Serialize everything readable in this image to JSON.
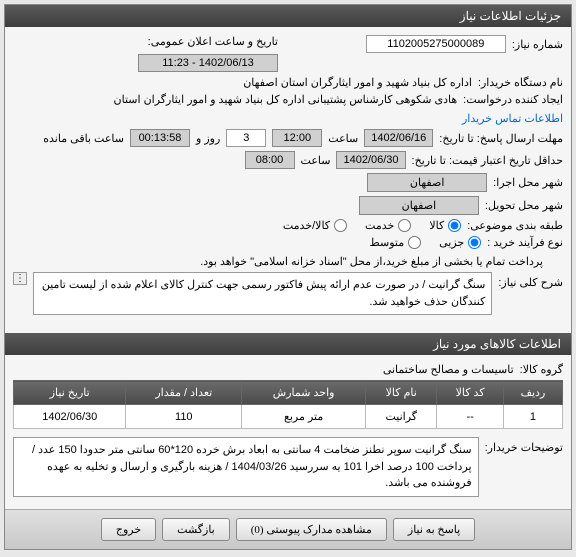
{
  "header_title": "جزئیات اطلاعات نیاز",
  "need_number_label": "شماره نیاز:",
  "need_number": "1102005275000089",
  "date_label": "تاریخ و ساعت اعلان عمومی:",
  "date_value": "1402/06/13 - 11:23",
  "buyer_label": "نام دستگاه خریدار:",
  "buyer_value": "اداره کل بنیاد شهید و امور ایثارگران استان اصفهان",
  "requester_label": "ایجاد کننده درخواست:",
  "requester_value": "هادی شکوهی کارشناس پشتیبانی اداره کل بنیاد شهید و امور ایثارگران استان",
  "contact_link": "اطلاعات تماس خریدار",
  "deadline_label": "مهلت ارسال پاسخ: تا تاریخ:",
  "deadline_date": "1402/06/16",
  "deadline_time_label": "ساعت",
  "deadline_time": "12:00",
  "days_val": "3",
  "days_label": "روز و",
  "remain_time": "00:13:58",
  "remain_label": "ساعت باقی مانده",
  "validity_label": "حداقل تاریخ اعتبار قیمت: تا تاریخ:",
  "validity_date": "1402/06/30",
  "validity_time": "08:00",
  "exec_city_label": "شهر محل اجرا:",
  "exec_city": "اصفهان",
  "deliver_city_label": "شهر محل تحویل:",
  "deliver_city": "اصفهان",
  "class_label": "طبقه بندی موضوعی:",
  "class_options": {
    "goods": "کالا",
    "service": "خدمت",
    "both": "کالا/خدمت"
  },
  "purchase_type_label": "نوع فرآیند خرید :",
  "purchase_options": {
    "partial": "جزیی",
    "medium": "متوسط"
  },
  "payment_note": "پرداخت تمام یا بخشی از مبلغ خرید،از محل \"اسناد خزانه اسلامی\" خواهد بود.",
  "desc_label": "شرح کلی نیاز:",
  "desc_text": "سنگ گرانیت / در صورت عدم ارائه پیش فاکتور رسمی جهت کنترل کالای اعلام شده از لیست تامین کنندگان حذف خواهید شد.",
  "goods_section_title": "اطلاعات کالاهای مورد نیاز",
  "group_label": "گروه کالا:",
  "group_value": "تاسیسات و مصالح ساختمانی",
  "table": {
    "columns": [
      "ردیف",
      "کد کالا",
      "نام کالا",
      "واحد شمارش",
      "تعداد / مقدار",
      "تاریخ نیاز"
    ],
    "rows": [
      [
        "1",
        "--",
        "گرانیت",
        "متر مربع",
        "110",
        "1402/06/30"
      ]
    ]
  },
  "buyer_notes_label": "توضیحات خریدار:",
  "buyer_notes": "سنگ گرانیت سوپر نطنز ضخامت 4 سانتی به ابعاد برش خرده 120*60 سانتی متر حدودا 150 عدد / پرداخت 100 درصد اخرا 101 یه سررسید 1404/03/26 / هزینه بارگیری و ارسال و تخلیه به عهده فروشنده می باشد.",
  "buttons": {
    "reply": "پاسخ به نیاز",
    "attachments": "مشاهده مدارک پیوستی (0)",
    "back": "بازگشت",
    "exit": "خروج"
  }
}
